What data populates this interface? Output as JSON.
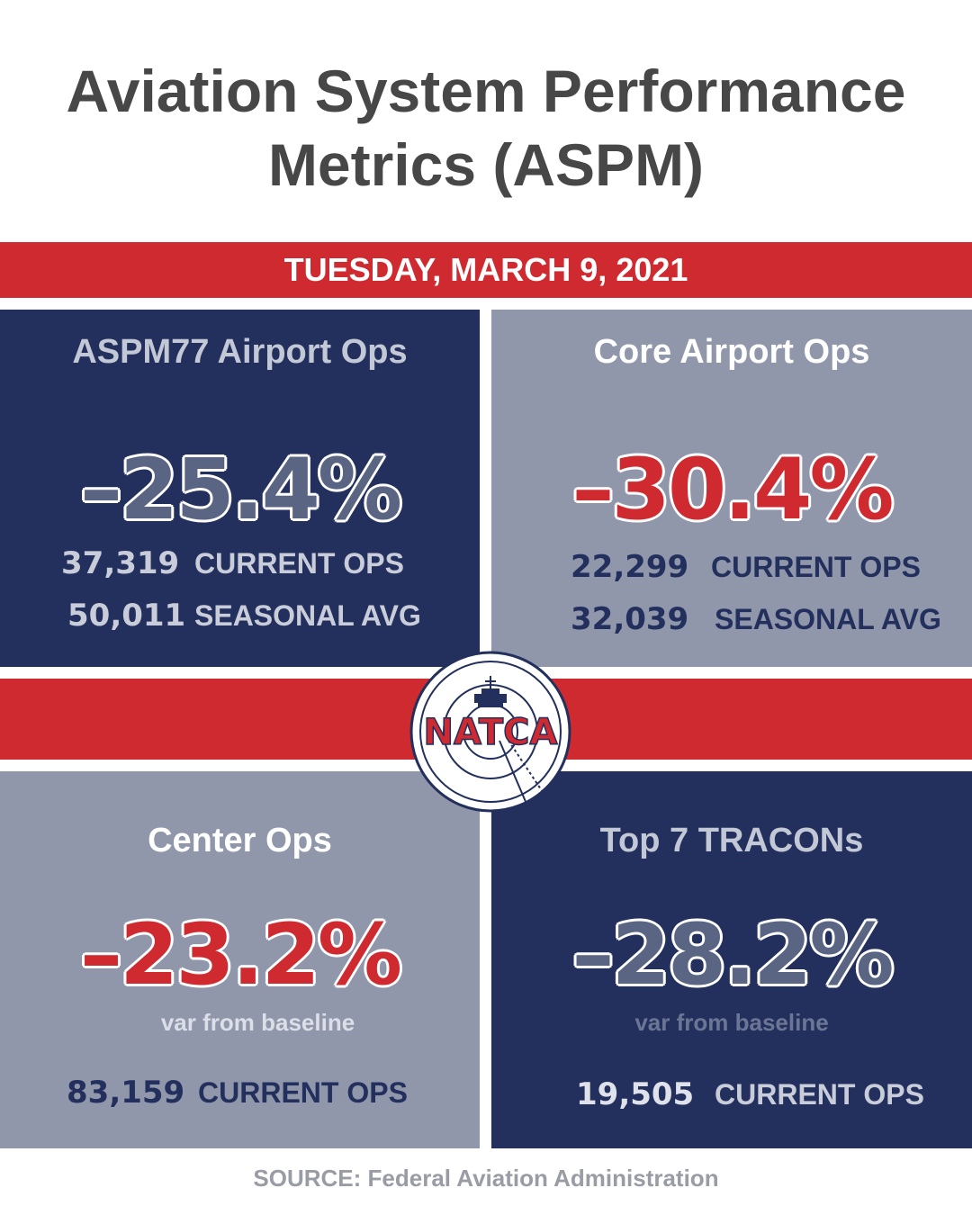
{
  "header": {
    "title_line1": "Aviation System Performance",
    "title_line2": "Metrics (ASPM)",
    "date": "TUESDAY, MARCH 9, 2021"
  },
  "panels": {
    "aspm77": {
      "title": "ASPM77 Airport Ops",
      "percent": "–25.4%",
      "current_value": "37,319",
      "current_label": "CURRENT OPS",
      "seasonal_value": "50,011",
      "seasonal_label": "SEASONAL AVG"
    },
    "core": {
      "title": "Core Airport Ops",
      "percent": "–30.4%",
      "current_value": "22,299",
      "current_label": "CURRENT OPS",
      "seasonal_value": "32,039",
      "seasonal_label": "SEASONAL AVG"
    },
    "center": {
      "title": "Center Ops",
      "percent": "–23.2%",
      "subtitle": "var from baseline",
      "current_value": "83,159",
      "current_label": "CURRENT OPS"
    },
    "tracons": {
      "title": "Top 7 TRACONs",
      "percent": "–28.2%",
      "subtitle": "var from baseline",
      "current_value": "19,505",
      "current_label": "CURRENT OPS"
    }
  },
  "logo": {
    "text": "NATCA"
  },
  "footer": {
    "source": "SOURCE: Federal Aviation Administration"
  },
  "colors": {
    "navy": "#23305d",
    "grey": "#9097ab",
    "red": "#d02a31",
    "title_grey": "#474747"
  }
}
